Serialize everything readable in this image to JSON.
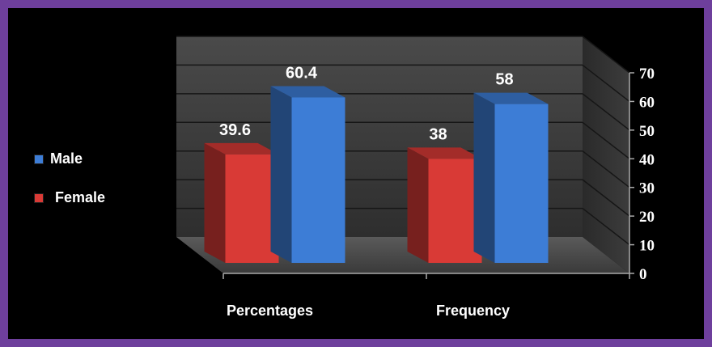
{
  "chart_data": {
    "type": "bar",
    "categories": [
      "Percentages",
      "Frequency"
    ],
    "series": [
      {
        "name": "Female",
        "values": [
          39.6,
          38
        ],
        "labels": [
          "39.6",
          "38"
        ],
        "color": "#d93a36"
      },
      {
        "name": "Male",
        "values": [
          60.4,
          58
        ],
        "labels": [
          "60.4",
          "58"
        ],
        "color": "#3d7dd6"
      }
    ],
    "ylim": [
      0,
      70
    ],
    "yticks": [
      "0",
      "10",
      "20",
      "30",
      "40",
      "50",
      "60",
      "70"
    ],
    "grid": true,
    "legend_position": "left",
    "style": "3d-column"
  },
  "legend": {
    "male_label": "Male",
    "female_label": "Female",
    "male_color": "#3d7dd6",
    "female_color": "#d93a36"
  },
  "colors": {
    "frame": "#6e3f9c",
    "background": "#000000",
    "wall": "#3a3a3a",
    "floor": "#555555"
  }
}
